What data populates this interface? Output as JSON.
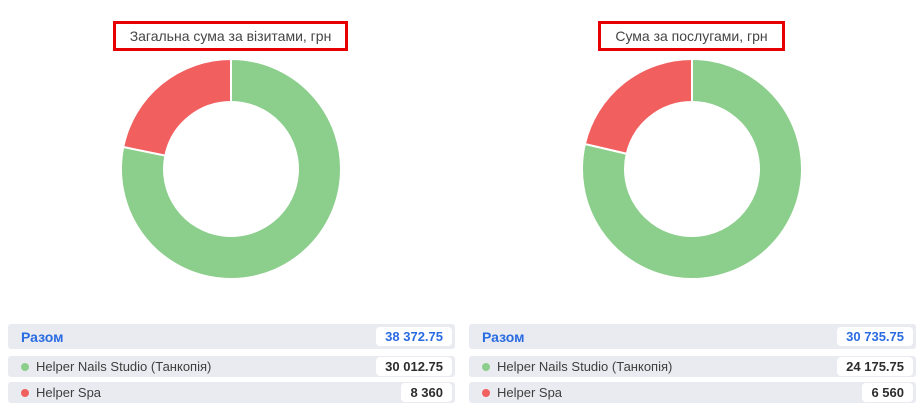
{
  "styles": {
    "green": "#8CCE8C",
    "red": "#F25F5F",
    "accent_blue": "#2A6BE2",
    "row_bg": "#E9EBF1",
    "annotation_red": "#E60000",
    "slice_gap_color": "#FFFFFF"
  },
  "chart_data": [
    {
      "type": "pie",
      "donut": true,
      "title": "Загальна сума за візитами, грн",
      "categories": [
        "Helper Nails Studio (Танкопія)",
        "Helper Spa"
      ],
      "values": [
        30012.75,
        8360
      ],
      "total": 38372.75,
      "colors": [
        "#8CCE8C",
        "#F25F5F"
      ],
      "start_angle_deg": 0,
      "legend_position": "table-below"
    },
    {
      "type": "pie",
      "donut": true,
      "title": "Сума за послугами, грн",
      "categories": [
        "Helper Nails Studio (Танкопія)",
        "Helper Spa"
      ],
      "values": [
        24175.75,
        6560
      ],
      "total": 30735.75,
      "colors": [
        "#8CCE8C",
        "#F25F5F"
      ],
      "start_angle_deg": 0,
      "legend_position": "table-below"
    }
  ],
  "tables": [
    {
      "total_label": "Разом",
      "total_value": "38 372.75",
      "rows": [
        {
          "label": "Helper Nails Studio (Танкопія)",
          "value": "30 012.75",
          "color": "#8CCE8C"
        },
        {
          "label": "Helper Spa",
          "value": "8 360",
          "color": "#F25F5F"
        }
      ]
    },
    {
      "total_label": "Разом",
      "total_value": "30 735.75",
      "rows": [
        {
          "label": "Helper Nails Studio (Танкопія)",
          "value": "24 175.75",
          "color": "#8CCE8C"
        },
        {
          "label": "Helper Spa",
          "value": "6 560",
          "color": "#F25F5F"
        }
      ]
    }
  ]
}
